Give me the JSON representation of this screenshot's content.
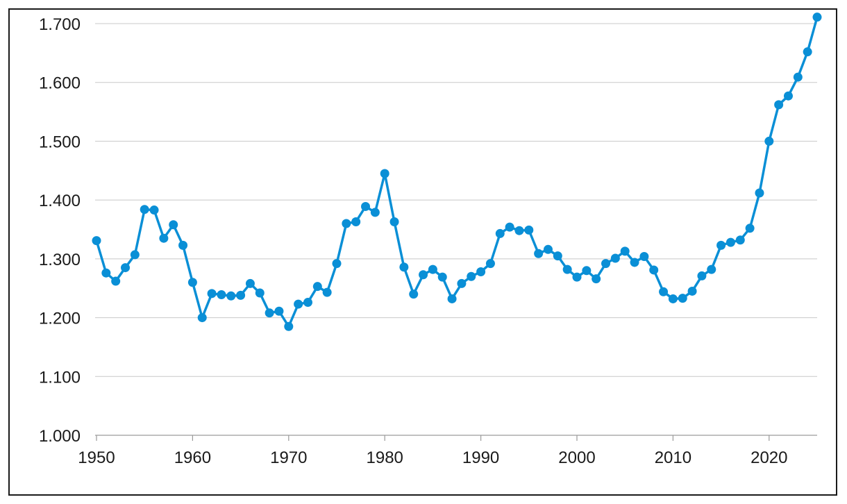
{
  "chart_data": {
    "type": "line",
    "title": "",
    "xlabel": "",
    "ylabel": "",
    "xlim": [
      1950,
      2025
    ],
    "ylim": [
      1000,
      1700
    ],
    "grid": true,
    "legend": "none",
    "x_ticks": [
      1950,
      1960,
      1970,
      1980,
      1990,
      2000,
      2010,
      2020
    ],
    "x_tick_labels": [
      "1950",
      "1960",
      "1970",
      "1980",
      "1990",
      "2000",
      "2010",
      "2020"
    ],
    "y_ticks": [
      1000,
      1100,
      1200,
      1300,
      1400,
      1500,
      1600,
      1700
    ],
    "y_tick_labels": [
      "1.000",
      "1.100",
      "1.200",
      "1.300",
      "1.400",
      "1.500",
      "1.600",
      "1.700"
    ],
    "color": "#0a8fd6",
    "x": [
      1950,
      1951,
      1952,
      1953,
      1954,
      1955,
      1956,
      1957,
      1958,
      1959,
      1960,
      1961,
      1962,
      1963,
      1964,
      1965,
      1966,
      1967,
      1968,
      1969,
      1970,
      1971,
      1972,
      1973,
      1974,
      1975,
      1976,
      1977,
      1978,
      1979,
      1980,
      1981,
      1982,
      1983,
      1984,
      1985,
      1986,
      1987,
      1988,
      1989,
      1990,
      1991,
      1992,
      1993,
      1994,
      1995,
      1996,
      1997,
      1998,
      1999,
      2000,
      2001,
      2002,
      2003,
      2004,
      2005,
      2006,
      2007,
      2008,
      2009,
      2010,
      2011,
      2012,
      2013,
      2014,
      2015,
      2016,
      2017,
      2018,
      2019,
      2020,
      2021,
      2022,
      2023,
      2024,
      2025
    ],
    "values": [
      1331,
      1276,
      1262,
      1285,
      1307,
      1384,
      1383,
      1335,
      1358,
      1323,
      1260,
      1200,
      1241,
      1239,
      1237,
      1238,
      1258,
      1242,
      1208,
      1211,
      1185,
      1223,
      1226,
      1253,
      1243,
      1292,
      1360,
      1363,
      1389,
      1379,
      1445,
      1363,
      1286,
      1240,
      1273,
      1282,
      1269,
      1232,
      1258,
      1270,
      1278,
      1292,
      1343,
      1354,
      1348,
      1349,
      1309,
      1316,
      1305,
      1282,
      1269,
      1280,
      1266,
      1292,
      1301,
      1313,
      1294,
      1304,
      1281,
      1244,
      1232,
      1233,
      1245,
      1271,
      1282,
      1323,
      1328,
      1332,
      1352,
      1412,
      1500,
      1562,
      1577,
      1609,
      1652,
      1711
    ]
  }
}
